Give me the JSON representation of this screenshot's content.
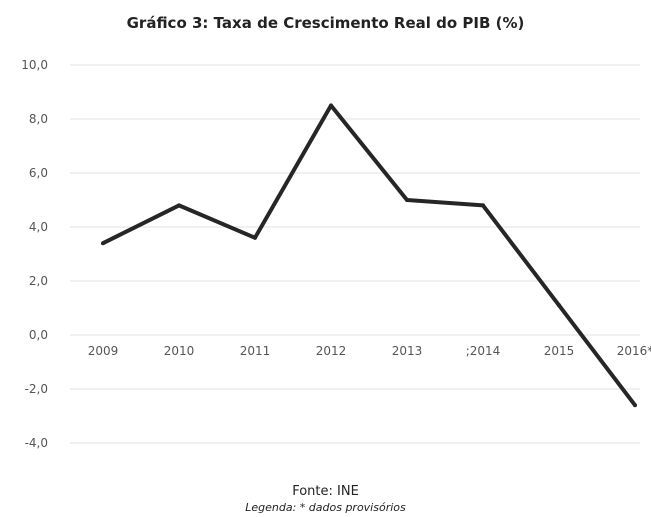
{
  "chart_data": {
    "type": "line",
    "title": "Gráfico 3: Taxa de Crescimento Real do PIB (%)",
    "xlabel": "",
    "ylabel": "",
    "categories": [
      "2009",
      "2010",
      "2011",
      "2012",
      "2013",
      "2014",
      "2015",
      "2016*"
    ],
    "tick_labels": [
      "2009",
      "2010",
      "2011",
      "2012",
      "2013",
      ";2014",
      "2015",
      "2016*"
    ],
    "series": [
      {
        "values": [
          3.4,
          4.8,
          3.6,
          8.5,
          5.0,
          4.8,
          1.1,
          -2.6
        ]
      }
    ],
    "yticks": [
      "10,0",
      "8,0",
      "6,0",
      "4,0",
      "2,0",
      "0,0",
      "-2,0",
      "-4,0"
    ],
    "ylim": [
      -4,
      10
    ],
    "grid": true,
    "series_color": "#262626"
  },
  "footer": {
    "source": "Fonte: INE",
    "legend": "Legenda: * dados provisórios"
  }
}
